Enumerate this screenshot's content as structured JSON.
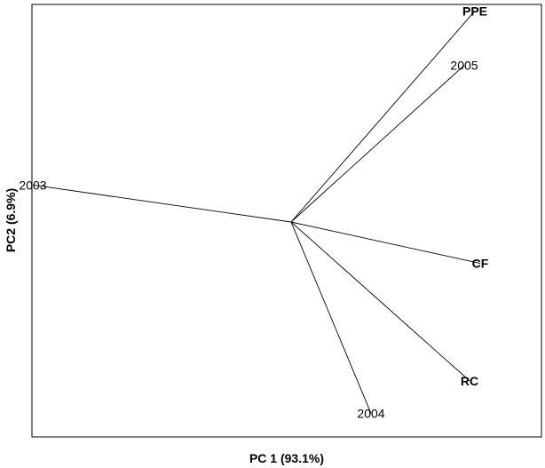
{
  "chart_data": {
    "type": "biplot",
    "title": "",
    "xlabel": "PC 1 (93.1%)",
    "ylabel": "PC2 (6.9%)",
    "xlim": [
      -1.0,
      1.0
    ],
    "ylim": [
      -1.0,
      1.0
    ],
    "grid": false,
    "origin": [
      0,
      0
    ],
    "vectors": [
      {
        "label": "PPE",
        "x": 0.69,
        "y": 0.97,
        "style": "bold"
      },
      {
        "label": "2005",
        "x": 0.65,
        "y": 0.72,
        "style": "plain"
      },
      {
        "label": "2003",
        "x": -0.97,
        "y": 0.17,
        "style": "plain"
      },
      {
        "label": "CF",
        "x": 0.71,
        "y": -0.19,
        "style": "bold"
      },
      {
        "label": "RC",
        "x": 0.67,
        "y": -0.73,
        "style": "bold"
      },
      {
        "label": "2004",
        "x": 0.3,
        "y": -0.88,
        "style": "plain"
      }
    ]
  }
}
